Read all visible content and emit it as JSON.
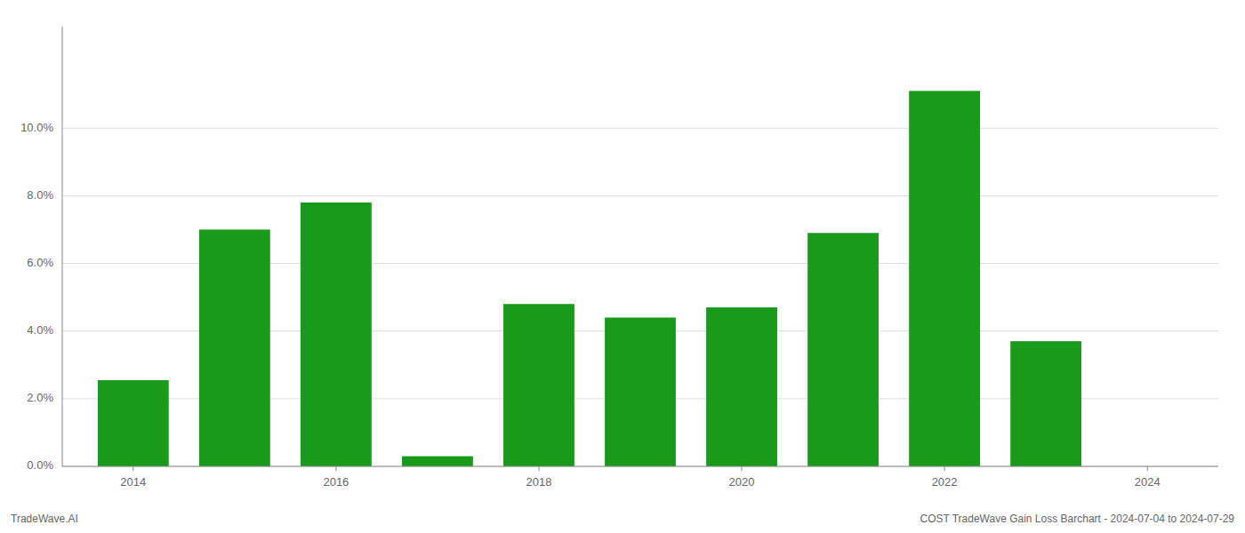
{
  "chart_data": {
    "type": "bar",
    "x": [
      2014,
      2015,
      2016,
      2017,
      2018,
      2019,
      2020,
      2021,
      2022,
      2023
    ],
    "values": [
      0.0255,
      0.07,
      0.078,
      0.003,
      0.048,
      0.044,
      0.047,
      0.069,
      0.111,
      0.037
    ],
    "color": "#1a9a1a",
    "xlim": [
      2013.3,
      2024.7
    ],
    "xticks": [
      2014,
      2016,
      2018,
      2020,
      2022,
      2024
    ],
    "ylim": [
      0,
      0.13
    ],
    "yticks": [
      {
        "value": 0.0,
        "label": "0.0%"
      },
      {
        "value": 0.02,
        "label": "2.0%"
      },
      {
        "value": 0.04,
        "label": "4.0%"
      },
      {
        "value": 0.06,
        "label": "6.0%"
      },
      {
        "value": 0.08,
        "label": "8.0%"
      },
      {
        "value": 0.1,
        "label": "10.0%"
      }
    ],
    "grid": true,
    "annotations": [
      "TradeWave.AI",
      "COST TradeWave Gain Loss Barchart - 2024-07-04 to 2024-07-29"
    ]
  }
}
